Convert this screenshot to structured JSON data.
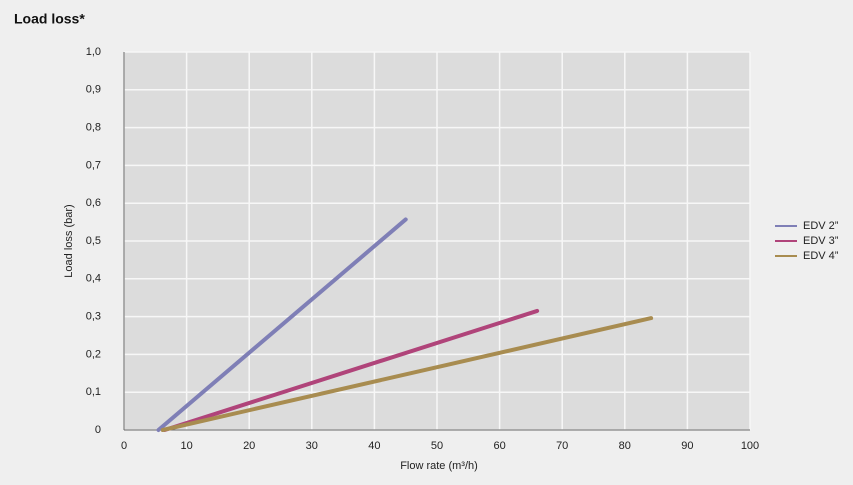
{
  "chart_data": {
    "type": "line",
    "title": "Load loss*",
    "x_label": "Flow rate (m³/h)",
    "y_label": "Load loss (bar)",
    "xlim": [
      0,
      100
    ],
    "xticks": [
      0,
      10,
      20,
      30,
      40,
      50,
      60,
      70,
      80,
      90,
      100
    ],
    "ylim": [
      0,
      1.0
    ],
    "yticks": [
      0,
      {
        "value": 0.1,
        "label": "0,1"
      },
      {
        "value": 0.2,
        "label": "0,2"
      },
      {
        "value": 0.3,
        "label": "0,3"
      },
      {
        "value": 0.4,
        "label": "0,4"
      },
      {
        "value": 0.5,
        "label": "0,5"
      },
      {
        "value": 0.6,
        "label": "0,6"
      },
      {
        "value": 0.7,
        "label": "0,7"
      },
      {
        "value": 0.8,
        "label": "0,8"
      },
      {
        "value": 0.9,
        "label": "0,9"
      },
      {
        "value": 1.0,
        "label": "1,0"
      }
    ],
    "grid": true,
    "legend": "right",
    "series": [
      {
        "name": "EDV 2”",
        "color": "#7f7fb6",
        "x": [
          5.5,
          45
        ],
        "values": [
          0,
          0.557
        ]
      },
      {
        "name": "EDV 3”",
        "color": "#b0447a",
        "x": [
          6.5,
          66
        ],
        "values": [
          0,
          0.315
        ]
      },
      {
        "name": "EDV 4”",
        "color": "#a88c50",
        "x": [
          6.2,
          84.2
        ],
        "values": [
          0,
          0.296
        ]
      }
    ]
  }
}
